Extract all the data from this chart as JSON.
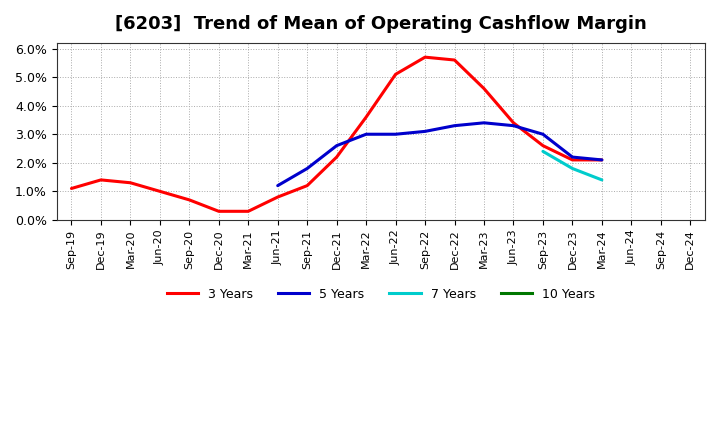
{
  "title": "[6203]  Trend of Mean of Operating Cashflow Margin",
  "title_fontsize": 13,
  "background_color": "#ffffff",
  "plot_background": "#ffffff",
  "grid_color": "#aaaaaa",
  "ylim": [
    0.0,
    0.062
  ],
  "yticks": [
    0.0,
    0.01,
    0.02,
    0.03,
    0.04,
    0.05,
    0.06
  ],
  "xtick_labels": [
    "Sep-19",
    "Dec-19",
    "Mar-20",
    "Jun-20",
    "Sep-20",
    "Dec-20",
    "Mar-21",
    "Jun-21",
    "Sep-21",
    "Dec-21",
    "Mar-22",
    "Jun-22",
    "Sep-22",
    "Dec-22",
    "Mar-23",
    "Jun-23",
    "Sep-23",
    "Dec-23",
    "Mar-24",
    "Jun-24",
    "Sep-24",
    "Dec-24"
  ],
  "series": {
    "3yr": {
      "color": "#ff0000",
      "label": "3 Years",
      "x": [
        0,
        1,
        2,
        3,
        4,
        5,
        6,
        7,
        8,
        9,
        10,
        11,
        12,
        13,
        14,
        15,
        16,
        17,
        18
      ],
      "y": [
        0.011,
        0.014,
        0.013,
        0.01,
        0.007,
        0.003,
        0.003,
        0.008,
        0.012,
        0.022,
        0.036,
        0.051,
        0.057,
        0.056,
        0.046,
        0.034,
        0.026,
        0.021,
        0.021
      ]
    },
    "5yr": {
      "color": "#0000cc",
      "label": "5 Years",
      "x": [
        7,
        8,
        9,
        10,
        11,
        12,
        13,
        14,
        15,
        16,
        17,
        18
      ],
      "y": [
        0.012,
        0.018,
        0.026,
        0.03,
        0.03,
        0.031,
        0.033,
        0.034,
        0.033,
        0.03,
        0.022,
        0.021
      ]
    },
    "7yr": {
      "color": "#00cccc",
      "label": "7 Years",
      "x": [
        16,
        17,
        18
      ],
      "y": [
        0.024,
        0.018,
        0.014
      ]
    },
    "10yr": {
      "color": "#007700",
      "label": "10 Years",
      "x": [],
      "y": []
    }
  },
  "legend_colors": [
    "#ff0000",
    "#0000cc",
    "#00cccc",
    "#007700"
  ],
  "legend_labels": [
    "3 Years",
    "5 Years",
    "7 Years",
    "10 Years"
  ],
  "linewidth": 2.2
}
